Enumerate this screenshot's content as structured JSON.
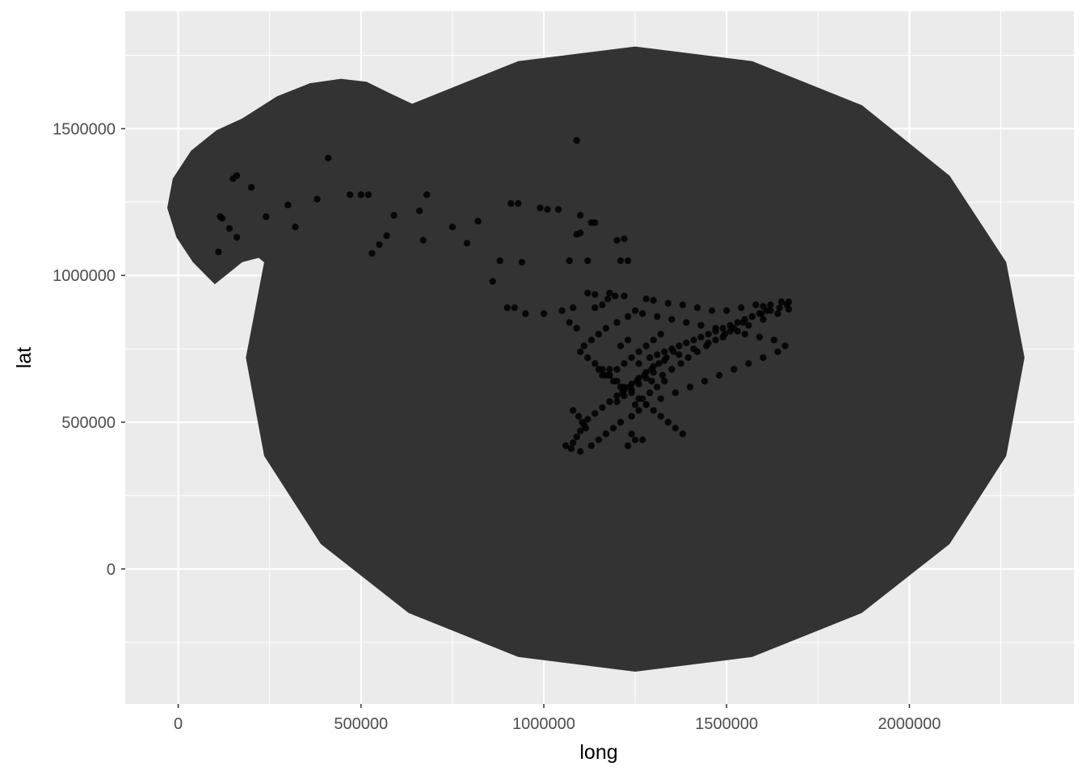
{
  "chart_data": {
    "type": "scatter",
    "title": "",
    "xlabel": "long",
    "ylabel": "lat",
    "xlim": [
      -145000,
      2450000
    ],
    "ylim": [
      -460000,
      1900000
    ],
    "x_major_ticks": [
      0,
      500000,
      1000000,
      1500000,
      2000000
    ],
    "x_minor_ticks": [
      250000,
      750000,
      1250000,
      1750000,
      2250000
    ],
    "y_major_ticks": [
      0,
      500000,
      1000000,
      1500000
    ],
    "y_minor_ticks": [
      -250000,
      250000,
      750000,
      1250000,
      1750000
    ],
    "x_tick_labels": [
      "0",
      "500000",
      "1000000",
      "1500000",
      "2000000"
    ],
    "y_tick_labels": [
      "0",
      "500000",
      "1000000",
      "1500000"
    ],
    "grid": true,
    "legend": "none",
    "colors": {
      "panel_background": "#ebebeb",
      "grid_line": "#ffffff",
      "polygon_fill": "#333333",
      "points": "#000000",
      "tick_label": "#4d4d4d",
      "axis_title": "#000000"
    },
    "polygons": [
      {
        "name": "buffer-west",
        "points": [
          [
            220000,
            1060000
          ],
          [
            175000,
            1045000
          ],
          [
            100000,
            970000
          ],
          [
            40000,
            1045000
          ],
          [
            -5000,
            1130000
          ],
          [
            -30000,
            1230000
          ],
          [
            -15000,
            1330000
          ],
          [
            35000,
            1425000
          ],
          [
            105000,
            1495000
          ],
          [
            175000,
            1535000
          ],
          [
            270000,
            1610000
          ],
          [
            360000,
            1655000
          ],
          [
            445000,
            1670000
          ],
          [
            515000,
            1660000
          ],
          [
            580000,
            1620000
          ],
          [
            640000,
            1585000
          ],
          [
            720000,
            1530000
          ],
          [
            820000,
            1440000
          ],
          [
            880000,
            1320000
          ],
          [
            890000,
            1180000
          ],
          [
            840000,
            1060000
          ],
          [
            720000,
            960000
          ],
          [
            520000,
            920000
          ],
          [
            350000,
            930000
          ]
        ]
      },
      {
        "name": "buffer-east",
        "points": [
          [
            1250000,
            1780000
          ],
          [
            1570000,
            1730000
          ],
          [
            1870000,
            1580000
          ],
          [
            2110000,
            1340000
          ],
          [
            2265000,
            1045000
          ],
          [
            2315000,
            720000
          ],
          [
            2265000,
            385000
          ],
          [
            2110000,
            85000
          ],
          [
            1870000,
            -150000
          ],
          [
            1570000,
            -300000
          ],
          [
            1250000,
            -350000
          ],
          [
            930000,
            -300000
          ],
          [
            630000,
            -150000
          ],
          [
            390000,
            85000
          ],
          [
            235000,
            385000
          ],
          [
            185000,
            720000
          ],
          [
            235000,
            1045000
          ],
          [
            390000,
            1340000
          ],
          [
            630000,
            1580000
          ],
          [
            930000,
            1730000
          ]
        ]
      }
    ],
    "points_x": [
      1090000,
      410000,
      160000,
      150000,
      200000,
      115000,
      120000,
      110000,
      140000,
      160000,
      240000,
      300000,
      320000,
      380000,
      470000,
      500000,
      530000,
      550000,
      570000,
      590000,
      520000,
      660000,
      680000,
      670000,
      750000,
      820000,
      790000,
      860000,
      910000,
      930000,
      990000,
      1010000,
      1040000,
      1100000,
      1090000,
      1130000,
      1140000,
      1100000,
      1120000,
      1200000,
      1220000,
      1210000,
      1230000,
      1070000,
      1050000,
      1000000,
      1080000,
      900000,
      920000,
      950000,
      880000,
      940000,
      1120000,
      1140000,
      1180000,
      1220000,
      1280000,
      1300000,
      1340000,
      1380000,
      1420000,
      1460000,
      1500000,
      1540000,
      1580000,
      1600000,
      1620000,
      1650000,
      1670000,
      1640000,
      1600000,
      1560000,
      1530000,
      1490000,
      1450000,
      1410000,
      1370000,
      1330000,
      1300000,
      1280000,
      1260000,
      1240000,
      1220000,
      1200000,
      1180000,
      1160000,
      1140000,
      1120000,
      1110000,
      1100000,
      1090000,
      1080000,
      1060000,
      1075000,
      1100000,
      1130000,
      1150000,
      1170000,
      1190000,
      1210000,
      1240000,
      1260000,
      1280000,
      1320000,
      1360000,
      1400000,
      1440000,
      1480000,
      1520000,
      1560000,
      1600000,
      1640000,
      1660000,
      1630000,
      1590000,
      1550000,
      1510000,
      1470000,
      1430000,
      1390000,
      1350000,
      1310000,
      1270000,
      1250000,
      1230000,
      1200000,
      1170000,
      1150000,
      1130000,
      1110000,
      1100000,
      1120000,
      1140000,
      1160000,
      1180000,
      1200000,
      1220000,
      1240000,
      1260000,
      1280000,
      1300000,
      1320000,
      1340000,
      1360000,
      1380000,
      1250000,
      1230000,
      1210000,
      1190000,
      1170000,
      1150000,
      1260000,
      1290000,
      1310000,
      1330000,
      1350000,
      1370000,
      1390000,
      1410000,
      1430000,
      1450000,
      1470000,
      1490000,
      1510000,
      1530000,
      1550000,
      1570000,
      1590000,
      1610000,
      1140000,
      1160000,
      1180000,
      1200000,
      1220000,
      1240000,
      1260000,
      1280000,
      1300000,
      1320000,
      1090000,
      1070000,
      1080000,
      1095000,
      1105000,
      1115000,
      1240000,
      1270000,
      1295000,
      1325000,
      1350000,
      1375000,
      1395000,
      1420000,
      1445000,
      1470000,
      1495000,
      1520000,
      1545000,
      1570000,
      1595000,
      1620000,
      1645000,
      1665000,
      1670000,
      1175000,
      1195000,
      1215000,
      1235000,
      1255000,
      1275000,
      1295000,
      1315000,
      1335000,
      1355000,
      1210000,
      1230000,
      1250000,
      1270000,
      1290000,
      1310000,
      1330000,
      1160000,
      1180000,
      1200000,
      1220000,
      1240000,
      1260000,
      1280000,
      1300000
    ],
    "points_y": [
      1460000,
      1400000,
      1340000,
      1330000,
      1300000,
      1200000,
      1195000,
      1080000,
      1160000,
      1130000,
      1200000,
      1240000,
      1165000,
      1260000,
      1275000,
      1275000,
      1075000,
      1105000,
      1135000,
      1205000,
      1275000,
      1220000,
      1275000,
      1120000,
      1165000,
      1185000,
      1110000,
      980000,
      1245000,
      1245000,
      1230000,
      1225000,
      1225000,
      1205000,
      1140000,
      1180000,
      1180000,
      1145000,
      1050000,
      1120000,
      1125000,
      1050000,
      1050000,
      1050000,
      880000,
      870000,
      890000,
      890000,
      890000,
      870000,
      1050000,
      1045000,
      940000,
      935000,
      940000,
      930000,
      920000,
      915000,
      905000,
      900000,
      890000,
      880000,
      880000,
      890000,
      900000,
      895000,
      900000,
      910000,
      885000,
      870000,
      850000,
      830000,
      810000,
      790000,
      770000,
      750000,
      730000,
      710000,
      690000,
      670000,
      650000,
      630000,
      610000,
      590000,
      570000,
      550000,
      530000,
      510000,
      490000,
      470000,
      450000,
      430000,
      420000,
      410000,
      400000,
      420000,
      440000,
      460000,
      480000,
      500000,
      520000,
      540000,
      560000,
      580000,
      600000,
      620000,
      640000,
      660000,
      680000,
      700000,
      720000,
      740000,
      760000,
      780000,
      790000,
      800000,
      810000,
      820000,
      830000,
      840000,
      850000,
      860000,
      870000,
      880000,
      860000,
      840000,
      820000,
      800000,
      780000,
      760000,
      740000,
      720000,
      700000,
      680000,
      660000,
      640000,
      620000,
      600000,
      580000,
      560000,
      540000,
      520000,
      500000,
      480000,
      460000,
      440000,
      420000,
      620000,
      640000,
      660000,
      680000,
      700000,
      720000,
      730000,
      740000,
      750000,
      760000,
      770000,
      780000,
      790000,
      800000,
      810000,
      820000,
      830000,
      840000,
      850000,
      860000,
      870000,
      880000,
      890000,
      900000,
      660000,
      680000,
      700000,
      720000,
      740000,
      760000,
      780000,
      800000,
      820000,
      840000,
      540000,
      520000,
      500000,
      480000,
      460000,
      440000,
      640000,
      660000,
      680000,
      700000,
      720000,
      740000,
      760000,
      780000,
      800000,
      820000,
      840000,
      860000,
      870000,
      880000,
      890000,
      900000,
      910000,
      920000,
      930000,
      600000,
      620000,
      640000,
      660000,
      680000,
      700000,
      720000,
      740000,
      760000,
      780000,
      560000,
      580000,
      600000,
      620000,
      640000,
      660000,
      680000,
      570000,
      590000,
      610000,
      630000,
      650000,
      670000,
      690000,
      710000
    ]
  }
}
